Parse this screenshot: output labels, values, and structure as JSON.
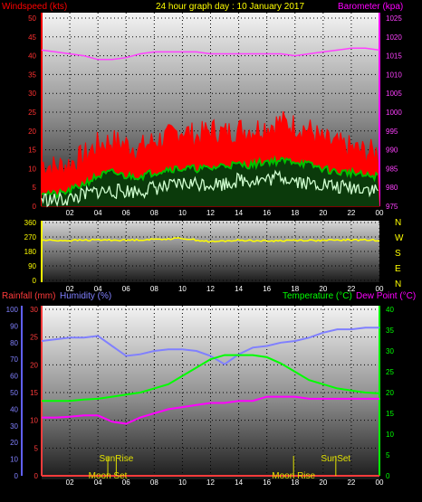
{
  "header": {
    "wind_label": "Windspeed (kts)",
    "title": "24 hour graph day : 10 January 2017",
    "baro_label": "Barometer (kpa)"
  },
  "colors": {
    "wind_label": "#ff0000",
    "title": "#ffff00",
    "baro_label": "#ff00ff",
    "rain": "#ff3b3b",
    "humidity": "#8080ff",
    "temperature": "#00ff00",
    "dewpoint": "#ff00ff",
    "direction": "#ffff00",
    "gust": "#ff0000",
    "average": "#00c000",
    "wind_lull": "#d0ffd0",
    "barometer": "#ff40ff",
    "event": "#e0e000"
  },
  "panel2": {
    "compass": [
      "N",
      "W",
      "S",
      "E",
      "N"
    ]
  },
  "panel3": {
    "rain_label": "Rainfall (mm)",
    "humidity_label": "Humidity (%)",
    "temp_label": "Temperature (°C)",
    "dew_label": "Dew Point (°C)",
    "events": {
      "sunrise": "SunRise",
      "sunset": "SunSet",
      "moonset": "Moon Set",
      "moonrise": "Moon Rise"
    }
  },
  "chart_data": [
    {
      "type": "line",
      "x_ticks": [
        "02",
        "04",
        "06",
        "08",
        "10",
        "12",
        "14",
        "16",
        "18",
        "20",
        "22",
        "00"
      ],
      "y_left_ticks": [
        0,
        5,
        10,
        15,
        20,
        25,
        30,
        35,
        40,
        45,
        50
      ],
      "y_left_lim": [
        0,
        50
      ],
      "y_right_ticks": [
        975,
        980,
        985,
        990,
        995,
        1000,
        1005,
        1010,
        1015,
        1020,
        1025
      ],
      "y_right_lim": [
        975,
        1025
      ],
      "x_hours": [
        0,
        1,
        2,
        3,
        4,
        5,
        6,
        7,
        8,
        9,
        10,
        11,
        12,
        13,
        14,
        15,
        16,
        17,
        18,
        19,
        20,
        21,
        22,
        23,
        24
      ],
      "series": [
        {
          "key": "barometer",
          "axis": "right",
          "values": [
            1016.5,
            1016,
            1015.5,
            1015,
            1014,
            1014,
            1014.5,
            1015.5,
            1016,
            1016,
            1016,
            1016,
            1015.5,
            1015.5,
            1015.5,
            1015.5,
            1015.5,
            1015.5,
            1015,
            1015.5,
            1016,
            1016.5,
            1017,
            1017,
            1016.5
          ]
        },
        {
          "key": "gust",
          "axis": "left",
          "values": [
            10,
            9,
            10,
            12,
            15,
            16,
            15,
            14,
            16,
            17,
            19,
            17,
            19,
            18,
            19,
            19,
            20,
            21,
            20,
            19,
            16,
            15,
            14,
            13,
            13
          ]
        },
        {
          "key": "average",
          "axis": "left",
          "values": [
            4,
            3,
            4,
            6,
            8,
            9,
            8,
            8,
            9,
            10,
            10,
            10,
            10,
            11,
            11,
            11,
            12,
            12,
            12,
            11,
            10,
            9,
            9,
            8,
            8
          ]
        },
        {
          "key": "wind_lull",
          "axis": "left",
          "values": [
            2,
            1.5,
            2,
            3,
            4,
            4,
            4,
            4,
            5,
            5,
            6,
            6,
            6,
            6,
            7,
            7,
            7,
            8,
            7,
            6,
            6,
            5,
            5,
            5,
            4
          ]
        }
      ]
    },
    {
      "type": "line",
      "x_ticks": [
        "02",
        "04",
        "06",
        "08",
        "10",
        "12",
        "14",
        "16",
        "18",
        "20",
        "22",
        "00"
      ],
      "y_ticks": [
        0,
        90,
        180,
        270,
        360
      ],
      "y_lim": [
        0,
        360
      ],
      "x_hours": [
        0,
        2,
        4,
        6,
        8,
        10,
        12,
        14,
        16,
        18,
        20,
        22,
        24
      ],
      "series": [
        {
          "key": "direction",
          "values": [
            250,
            248,
            252,
            250,
            255,
            262,
            240,
            250,
            245,
            250,
            248,
            252,
            250
          ]
        }
      ]
    },
    {
      "type": "line",
      "x_ticks": [
        "02",
        "04",
        "06",
        "08",
        "10",
        "12",
        "14",
        "16",
        "18",
        "20",
        "22",
        "00"
      ],
      "y_hum_ticks": [
        0,
        10,
        20,
        30,
        40,
        50,
        60,
        70,
        80,
        90,
        100
      ],
      "y_hum_lim": [
        0,
        100
      ],
      "y_rain_ticks": [
        0,
        5,
        10,
        15,
        20,
        25,
        30
      ],
      "y_rain_lim": [
        0,
        30
      ],
      "y_temp_ticks": [
        0,
        5,
        10,
        15,
        20,
        25,
        30,
        35,
        40
      ],
      "y_temp_lim": [
        0,
        40
      ],
      "x_hours": [
        0,
        1,
        2,
        3,
        4,
        5,
        6,
        7,
        8,
        9,
        10,
        11,
        12,
        13,
        14,
        15,
        16,
        17,
        18,
        19,
        20,
        21,
        22,
        23,
        24
      ],
      "series": [
        {
          "key": "humidity",
          "axis": "humidity",
          "values": [
            81,
            82,
            83,
            83,
            84,
            78,
            72,
            73,
            75,
            76,
            76,
            75,
            72,
            67,
            73,
            77,
            78,
            80,
            81,
            83,
            86,
            88,
            88,
            89,
            89
          ]
        },
        {
          "key": "temperature",
          "axis": "temperature",
          "values": [
            18,
            18,
            18,
            18.3,
            18.5,
            19,
            19.5,
            20,
            21,
            22,
            24,
            26,
            28,
            29,
            29,
            29,
            28.5,
            27,
            25,
            23,
            22,
            21,
            20.5,
            20,
            19.8
          ]
        },
        {
          "key": "dewpoint",
          "axis": "temperature",
          "values": [
            14,
            14,
            14.2,
            14.5,
            14.5,
            13,
            12.5,
            14,
            15,
            16,
            16.5,
            17,
            17.5,
            17.5,
            18,
            18,
            19,
            19,
            19,
            18.5,
            18.5,
            18.5,
            18.5,
            18.5,
            18.5
          ]
        },
        {
          "key": "rain",
          "axis": "rain",
          "values": [
            0,
            0,
            0,
            0,
            0,
            0,
            0,
            0,
            0,
            0,
            0,
            0,
            0,
            0,
            0,
            0,
            0,
            0,
            0,
            0,
            0,
            0,
            0,
            0,
            0
          ]
        }
      ],
      "events": {
        "sunrise_hour": 5.3,
        "sunset_hour": 20.9,
        "moonset_hour": 4.7,
        "moonrise_hour": 17.9
      }
    }
  ]
}
